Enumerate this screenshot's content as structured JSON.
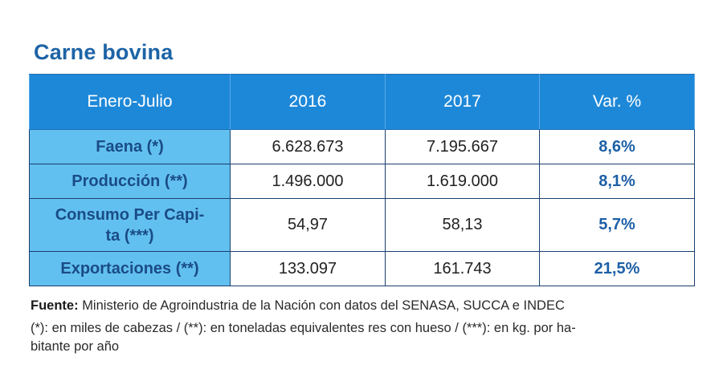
{
  "title": "Carne bovina",
  "table": {
    "headers": [
      "Enero-Julio",
      "2016",
      "2017",
      "Var. %"
    ],
    "rows": [
      {
        "label": "Faena (*)",
        "v2016": "6.628.673",
        "v2017": "7.195.667",
        "var": "8,6%"
      },
      {
        "label": "Producción (**)",
        "v2016": "1.496.000",
        "v2017": "1.619.000",
        "var": "8,1%"
      },
      {
        "label_line1": "Consumo Per Capi-",
        "label_line2": "ta (***)",
        "v2016": "54,97",
        "v2017": "58,13",
        "var": "5,7%"
      },
      {
        "label": "Exportaciones (**)",
        "v2016": "133.097",
        "v2017": "161.743",
        "var": "21,5%"
      }
    ]
  },
  "notes": {
    "source_label": "Fuente:",
    "source_text": "Ministerio de Agroindustria de la Nación con datos del SENASA, SUCCA e INDEC",
    "legend_line1": "(*): en miles de cabezas / (**): en toneladas equivalentes res con hueso / (***): en kg. por ha-",
    "legend_line2": "bitante por año"
  }
}
